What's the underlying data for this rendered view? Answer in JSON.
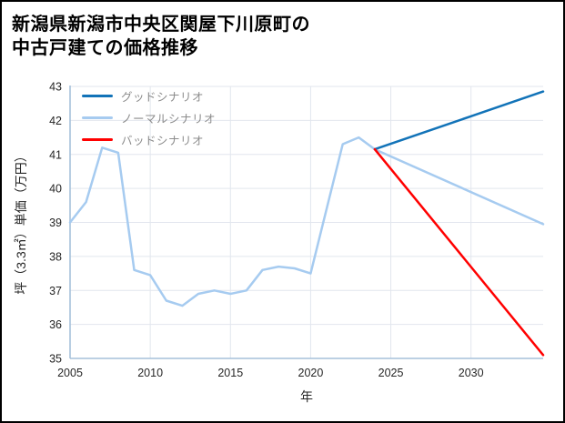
{
  "page": {
    "title_line1": "新潟県新潟市中央区関屋下川原町の",
    "title_line2": "中古戸建ての価格推移"
  },
  "chart_data": {
    "type": "line",
    "title": "新潟県新潟市中央区関屋下川原町の中古戸建ての価格推移",
    "xlabel": "年",
    "ylabel": "坪（3.3㎡）単価（万円）",
    "xlim": [
      2005,
      2034.5
    ],
    "ylim": [
      35,
      43
    ],
    "x_ticks": [
      2005,
      2010,
      2015,
      2020,
      2025,
      2030
    ],
    "y_ticks": [
      35,
      36,
      37,
      38,
      39,
      40,
      41,
      42,
      43
    ],
    "grid": true,
    "legend_position": "upper-left",
    "colors": {
      "good": "#1273b8",
      "normal": "#a6cbf0",
      "bad": "#ff0000",
      "grid": "#e2e6ee",
      "axis": "#a6c1da",
      "tick_label": "#262626",
      "legend_label": "#8c8c8c"
    },
    "series": [
      {
        "name": "グッドシナリオ",
        "color": "#1273b8",
        "z": 1,
        "x": [
          2024,
          2034.5
        ],
        "y": [
          41.15,
          42.85
        ]
      },
      {
        "name": "ノーマルシナリオ",
        "color": "#a6cbf0",
        "z": 0,
        "x": [
          2005,
          2006,
          2007,
          2008,
          2009,
          2010,
          2011,
          2012,
          2013,
          2014,
          2015,
          2016,
          2017,
          2018,
          2019,
          2020,
          2021,
          2022,
          2023,
          2024,
          2034.5
        ],
        "y": [
          39.0,
          39.6,
          41.2,
          41.05,
          37.6,
          37.45,
          36.7,
          36.55,
          36.9,
          37.0,
          36.9,
          37.0,
          37.6,
          37.7,
          37.65,
          37.5,
          39.4,
          41.3,
          41.5,
          41.15,
          38.95
        ]
      },
      {
        "name": "バッドシナリオ",
        "color": "#ff0000",
        "z": 2,
        "x": [
          2024,
          2034.5
        ],
        "y": [
          41.15,
          35.1
        ]
      }
    ]
  }
}
